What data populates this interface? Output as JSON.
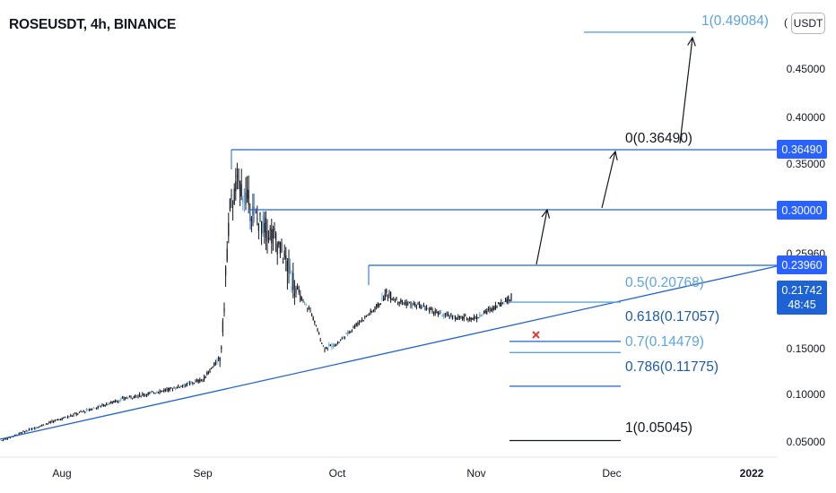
{
  "header": {
    "symbol_title": "ROSEUSDT, 4h, BINANCE",
    "currency_button": "USDT",
    "currency_cut": "("
  },
  "colors": {
    "line_blue": "#1e63d6",
    "light_blue": "#5da4da",
    "badge": "#2962ff",
    "candle": "#131722",
    "cross": "#e53935"
  },
  "chart_data": {
    "type": "line",
    "ylim": [
      0.02,
      0.51
    ],
    "x_ticks": [
      "Aug",
      "Sep",
      "Oct",
      "Nov",
      "Dec",
      "2022"
    ],
    "y_ticks": [
      "0.05000",
      "0.10000",
      "0.15000",
      "0.25960",
      "0.35000",
      "0.40000",
      "0.45000"
    ],
    "price_badges": [
      "0.36490",
      "0.30000",
      "0.23960"
    ],
    "current_price": {
      "value": "0.21742",
      "countdown": "48:45"
    },
    "fib_levels": [
      {
        "label": "1(0.49084)",
        "value": 0.49084
      },
      {
        "label": "0(0.36490)",
        "value": 0.3649
      },
      {
        "label": "0.5(0.20768)",
        "value": 0.20768
      },
      {
        "label": "0.618(0.17057)",
        "value": 0.17057
      },
      {
        "label": "0.7(0.14479)",
        "value": 0.14479
      },
      {
        "label": "0.786(0.11775)",
        "value": 0.11775
      },
      {
        "label": "1(0.05045)",
        "value": 0.05045
      }
    ],
    "resistance_levels": [
      0.3649,
      0.3,
      0.2396
    ],
    "price_series": {
      "x": [
        "Jul-14",
        "Jul-25",
        "Aug-05",
        "Aug-15",
        "Aug-25",
        "Sep-01",
        "Sep-05",
        "Sep-07",
        "Sep-09",
        "Sep-13",
        "Sep-17",
        "Sep-21",
        "Sep-25",
        "Sep-28",
        "Oct-01",
        "Oct-05",
        "Oct-09",
        "Oct-12",
        "Oct-16",
        "Oct-20",
        "Oct-24",
        "Oct-28",
        "Nov-01",
        "Nov-05",
        "Nov-09"
      ],
      "y": [
        0.05,
        0.065,
        0.08,
        0.095,
        0.105,
        0.115,
        0.14,
        0.3,
        0.33,
        0.29,
        0.27,
        0.23,
        0.2,
        0.15,
        0.155,
        0.18,
        0.2,
        0.22,
        0.21,
        0.205,
        0.195,
        0.19,
        0.19,
        0.205,
        0.2174
      ]
    }
  }
}
